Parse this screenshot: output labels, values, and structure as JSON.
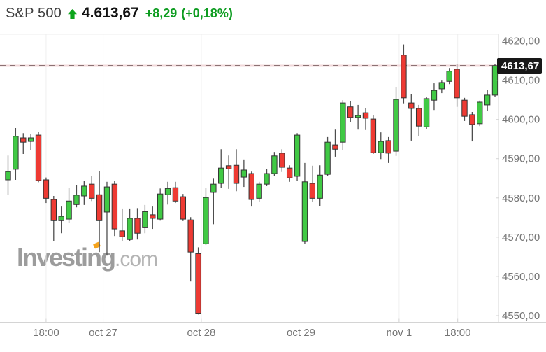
{
  "header": {
    "symbol": "S&P 500",
    "trend": "up",
    "trend_icon": "up-arrow",
    "last_price": "4.613,67",
    "change": "+8,29",
    "change_percent": "(+0,18%)",
    "positive_color": "#0d9c20"
  },
  "watermark": {
    "brand": "Investing",
    "suffix": ".com",
    "accent_color": "#f5a31c"
  },
  "colors": {
    "candle_up": "#40c944",
    "candle_down": "#ee3a33",
    "candle_stroke": "#333333",
    "wick": "#4d4d4d",
    "grid": "#f0f0f0",
    "axis_line": "#d4d4d4",
    "axis_text": "#757575",
    "price_line_dash": "#6b5152",
    "price_line_glow": "#f2d8da",
    "price_tag_bg": "#181818"
  },
  "chart_data": {
    "type": "candlestick",
    "title": "S&P 500 intraday 30-minute candles",
    "axis": {
      "min": 4548.3,
      "max": 4621.7
    },
    "grid": "vertical-only",
    "price_line": {
      "value": 4613.67,
      "label": "4613,67"
    },
    "y_ticks": [
      {
        "v": 4620,
        "label": "4620,00"
      },
      {
        "v": 4610,
        "label": "4610,00"
      },
      {
        "v": 4600,
        "label": "4600,00"
      },
      {
        "v": 4590,
        "label": "4590,00"
      },
      {
        "v": 4580,
        "label": "4580,00"
      },
      {
        "v": 4570,
        "label": "4570,00"
      },
      {
        "v": 4560,
        "label": "4560,00"
      },
      {
        "v": 4550,
        "label": "4550,00"
      }
    ],
    "x_ticks": [
      {
        "label": "18:00",
        "i": 5.0
      },
      {
        "label": "oct 27",
        "i": 12.5
      },
      {
        "label": "oct 28",
        "i": 25.4
      },
      {
        "label": "oct 29",
        "i": 38.5
      },
      {
        "label": "nov 1",
        "i": 51.4
      },
      {
        "label": "18:00",
        "i": 59.1
      }
    ],
    "candles": [
      {
        "o": 4584.6,
        "h": 4590.8,
        "l": 4580.8,
        "c": 4586.7
      },
      {
        "o": 4587.3,
        "h": 4597.8,
        "l": 4584.6,
        "c": 4595.7
      },
      {
        "o": 4595.3,
        "h": 4596.5,
        "l": 4591.2,
        "c": 4594.2
      },
      {
        "o": 4594.4,
        "h": 4596.2,
        "l": 4592.1,
        "c": 4595.3
      },
      {
        "o": 4596.0,
        "h": 4596.9,
        "l": 4584.0,
        "c": 4584.4
      },
      {
        "o": 4584.6,
        "h": 4585.2,
        "l": 4578.7,
        "c": 4579.9
      },
      {
        "o": 4579.6,
        "h": 4580.5,
        "l": 4568.9,
        "c": 4574.2
      },
      {
        "o": 4574.2,
        "h": 4577.8,
        "l": 4571.0,
        "c": 4575.3
      },
      {
        "o": 4574.6,
        "h": 4582.6,
        "l": 4573.7,
        "c": 4579.2
      },
      {
        "o": 4578.3,
        "h": 4583.3,
        "l": 4577.6,
        "c": 4580.7
      },
      {
        "o": 4580.5,
        "h": 4584.4,
        "l": 4578.2,
        "c": 4583.0
      },
      {
        "o": 4583.5,
        "h": 4585.5,
        "l": 4579.2,
        "c": 4579.9
      },
      {
        "o": 4580.8,
        "h": 4586.9,
        "l": 4566.2,
        "c": 4574.2
      },
      {
        "o": 4576.4,
        "h": 4584.1,
        "l": 4565.3,
        "c": 4582.8
      },
      {
        "o": 4583.5,
        "h": 4584.4,
        "l": 4570.3,
        "c": 4572.1
      },
      {
        "o": 4571.6,
        "h": 4577.3,
        "l": 4568.9,
        "c": 4570.1
      },
      {
        "o": 4569.4,
        "h": 4577.3,
        "l": 4568.9,
        "c": 4574.8
      },
      {
        "o": 4574.8,
        "h": 4577.4,
        "l": 4569.4,
        "c": 4571.0
      },
      {
        "o": 4572.4,
        "h": 4578.2,
        "l": 4571.0,
        "c": 4576.5
      },
      {
        "o": 4575.7,
        "h": 4577.8,
        "l": 4572.1,
        "c": 4574.8
      },
      {
        "o": 4574.6,
        "h": 4582.4,
        "l": 4574.2,
        "c": 4581.0
      },
      {
        "o": 4580.8,
        "h": 4584.1,
        "l": 4578.3,
        "c": 4582.4
      },
      {
        "o": 4582.6,
        "h": 4584.1,
        "l": 4578.7,
        "c": 4579.2
      },
      {
        "o": 4580.3,
        "h": 4581.0,
        "l": 4574.1,
        "c": 4574.6
      },
      {
        "o": 4574.4,
        "h": 4575.1,
        "l": 4558.7,
        "c": 4566.2
      },
      {
        "o": 4565.8,
        "h": 4567.4,
        "l": 4550.3,
        "c": 4550.6
      },
      {
        "o": 4568.3,
        "h": 4582.6,
        "l": 4568.0,
        "c": 4580.1
      },
      {
        "o": 4581.4,
        "h": 4584.9,
        "l": 4573.3,
        "c": 4583.5
      },
      {
        "o": 4583.7,
        "h": 4592.4,
        "l": 4582.6,
        "c": 4587.6
      },
      {
        "o": 4588.2,
        "h": 4590.8,
        "l": 4582.3,
        "c": 4587.4
      },
      {
        "o": 4588.3,
        "h": 4592.4,
        "l": 4581.7,
        "c": 4583.7
      },
      {
        "o": 4585.3,
        "h": 4589.8,
        "l": 4582.8,
        "c": 4587.1
      },
      {
        "o": 4586.2,
        "h": 4586.7,
        "l": 4577.8,
        "c": 4579.6
      },
      {
        "o": 4579.9,
        "h": 4584.1,
        "l": 4579.0,
        "c": 4583.5
      },
      {
        "o": 4583.5,
        "h": 4587.4,
        "l": 4583.0,
        "c": 4586.2
      },
      {
        "o": 4586.2,
        "h": 4591.7,
        "l": 4585.5,
        "c": 4590.7
      },
      {
        "o": 4591.4,
        "h": 4592.4,
        "l": 4586.6,
        "c": 4587.8
      },
      {
        "o": 4587.6,
        "h": 4588.3,
        "l": 4584.1,
        "c": 4585.1
      },
      {
        "o": 4585.5,
        "h": 4596.5,
        "l": 4584.4,
        "c": 4596.0
      },
      {
        "o": 4568.9,
        "h": 4588.9,
        "l": 4568.3,
        "c": 4584.1
      },
      {
        "o": 4583.7,
        "h": 4588.2,
        "l": 4578.9,
        "c": 4579.9
      },
      {
        "o": 4579.9,
        "h": 4588.3,
        "l": 4578.0,
        "c": 4585.8
      },
      {
        "o": 4586.0,
        "h": 4595.5,
        "l": 4585.5,
        "c": 4594.2
      },
      {
        "o": 4593.5,
        "h": 4597.4,
        "l": 4590.5,
        "c": 4592.4
      },
      {
        "o": 4594.2,
        "h": 4604.9,
        "l": 4592.1,
        "c": 4604.2
      },
      {
        "o": 4603.2,
        "h": 4604.6,
        "l": 4599.4,
        "c": 4600.5
      },
      {
        "o": 4600.5,
        "h": 4603.7,
        "l": 4597.4,
        "c": 4601.0
      },
      {
        "o": 4601.7,
        "h": 4602.8,
        "l": 4597.3,
        "c": 4600.3
      },
      {
        "o": 4600.1,
        "h": 4601.0,
        "l": 4591.2,
        "c": 4591.5
      },
      {
        "o": 4591.5,
        "h": 4596.7,
        "l": 4589.9,
        "c": 4594.4
      },
      {
        "o": 4594.6,
        "h": 4595.5,
        "l": 4588.9,
        "c": 4591.4
      },
      {
        "o": 4591.9,
        "h": 4608.3,
        "l": 4590.7,
        "c": 4605.1
      },
      {
        "o": 4616.4,
        "h": 4619.1,
        "l": 4604.1,
        "c": 4605.5
      },
      {
        "o": 4604.2,
        "h": 4606.4,
        "l": 4594.6,
        "c": 4602.8
      },
      {
        "o": 4602.8,
        "h": 4603.7,
        "l": 4595.8,
        "c": 4598.3
      },
      {
        "o": 4598.1,
        "h": 4605.8,
        "l": 4597.6,
        "c": 4605.3
      },
      {
        "o": 4604.9,
        "h": 4609.2,
        "l": 4602.4,
        "c": 4607.4
      },
      {
        "o": 4607.8,
        "h": 4609.9,
        "l": 4606.7,
        "c": 4609.4
      },
      {
        "o": 4609.7,
        "h": 4613.1,
        "l": 4609.0,
        "c": 4612.3
      },
      {
        "o": 4612.8,
        "h": 4614.1,
        "l": 4603.2,
        "c": 4605.5
      },
      {
        "o": 4604.9,
        "h": 4605.5,
        "l": 4599.6,
        "c": 4600.8
      },
      {
        "o": 4601.2,
        "h": 4601.9,
        "l": 4594.4,
        "c": 4598.7
      },
      {
        "o": 4598.9,
        "h": 4604.8,
        "l": 4598.3,
        "c": 4604.4
      },
      {
        "o": 4603.7,
        "h": 4607.6,
        "l": 4602.2,
        "c": 4606.2
      },
      {
        "o": 4606.2,
        "h": 4614.2,
        "l": 4605.8,
        "c": 4613.7
      }
    ]
  }
}
